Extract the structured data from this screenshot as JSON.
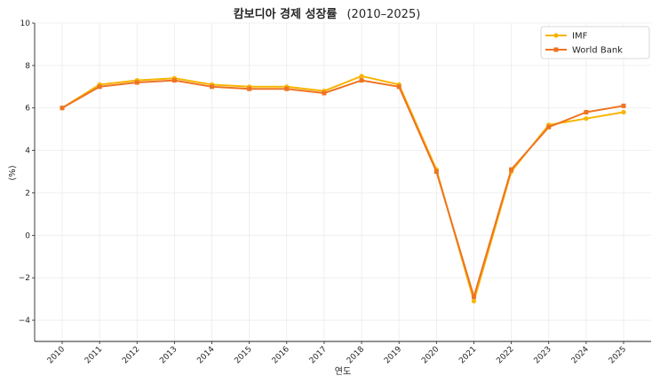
{
  "chart_data": {
    "type": "line",
    "title_main": "캄보디아 경제 성장률",
    "title_years": "(2010–2025)",
    "xlabel": "연도",
    "ylabel": "(%)",
    "x": [
      "2010",
      "2011",
      "2012",
      "2013",
      "2014",
      "2015",
      "2016",
      "2017",
      "2018",
      "2019",
      "2020",
      "2021",
      "2022",
      "2023",
      "2024",
      "2025"
    ],
    "ylim": [
      -5,
      10
    ],
    "yticks": [
      -4,
      -2,
      0,
      2,
      4,
      6,
      8,
      10
    ],
    "ytick_labels": [
      "−4",
      "−2",
      "0",
      "2",
      "4",
      "6",
      "8",
      "10"
    ],
    "grid": true,
    "legend_position": "top-right",
    "series": [
      {
        "name": "IMF",
        "color": "#f7b500",
        "marker": "circle",
        "values": [
          6.0,
          7.1,
          7.3,
          7.4,
          7.1,
          7.0,
          7.0,
          6.8,
          7.5,
          7.1,
          3.1,
          -3.1,
          3.0,
          5.2,
          5.5,
          5.8
        ]
      },
      {
        "name": "World Bank",
        "color": "#ee7423",
        "marker": "square",
        "values": [
          6.0,
          7.0,
          7.2,
          7.3,
          7.0,
          6.9,
          6.9,
          6.7,
          7.3,
          7.0,
          3.0,
          -2.9,
          3.1,
          5.1,
          5.8,
          6.1
        ]
      }
    ]
  }
}
